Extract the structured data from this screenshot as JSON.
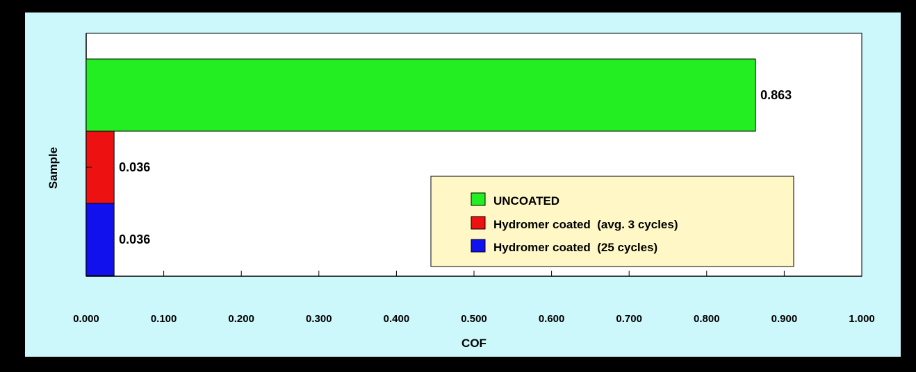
{
  "colors": {
    "page_background": "#000000",
    "chart_background": "#ccf7fb",
    "plot_background": "#ffffff",
    "legend_background": "#fff8c6"
  },
  "chart_data": {
    "type": "bar",
    "orientation": "horizontal",
    "xlabel": "COF",
    "ylabel": "Sample",
    "xlim": [
      0,
      1
    ],
    "x_ticks": [
      "0.000",
      "0.100",
      "0.200",
      "0.300",
      "0.400",
      "0.500",
      "0.600",
      "0.700",
      "0.800",
      "0.900",
      "1.000"
    ],
    "grid": false,
    "legend_position": "lower-right inside plot",
    "series": [
      {
        "name": "UNCOATED",
        "value": 0.863,
        "label": "0.863",
        "color": "#22ee22"
      },
      {
        "name": "Hydromer coated  (avg. 3 cycles)",
        "value": 0.036,
        "label": "0.036",
        "color": "#ee1111"
      },
      {
        "name": "Hydromer coated  (25 cycles)",
        "value": 0.036,
        "label": "0.036",
        "color": "#1111ee"
      }
    ]
  }
}
